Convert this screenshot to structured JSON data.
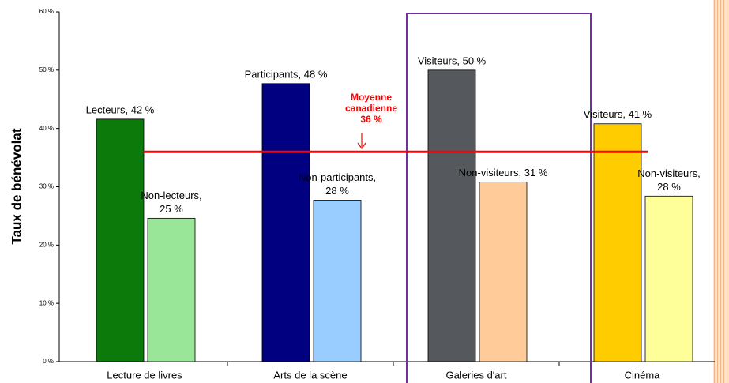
{
  "chart_data": {
    "type": "bar",
    "y_label": "Taux de bénévolat",
    "categories": [
      "Lecture de livres",
      "Arts de la scène",
      "Galeries d'art",
      "Cinéma"
    ],
    "series": [
      {
        "colors": [
          "#0b7a0b",
          "#000080",
          "#55595e",
          "#ffcc00"
        ],
        "values": [
          41.6,
          47.7,
          50,
          40.8
        ],
        "value_labels": [
          [
            "Lecteurs, 42 %"
          ],
          [
            "Participants, 48 %"
          ],
          [
            "Visiteurs, 50 %"
          ],
          [
            "Visiteurs, 41 %"
          ]
        ]
      },
      {
        "colors": [
          "#99e699",
          "#99ccff",
          "#ffcc99",
          "#ffff99"
        ],
        "values": [
          24.6,
          27.7,
          30.8,
          28.4
        ],
        "value_labels": [
          [
            "Non-lecteurs,",
            "25 %"
          ],
          [
            "Non-participants,",
            "28 %"
          ],
          [
            "Non-visiteurs, 31 %"
          ],
          [
            "Non-visiteurs,",
            "28 %"
          ]
        ]
      }
    ],
    "ylim": [
      0,
      60
    ],
    "yticks": [
      {
        "value": 0,
        "label": "0 %"
      },
      {
        "value": 10,
        "label": "10 %"
      },
      {
        "value": 20,
        "label": "20 %"
      },
      {
        "value": 30,
        "label": "30 %"
      },
      {
        "value": 40,
        "label": "40 %"
      },
      {
        "value": 50,
        "label": "50 %"
      },
      {
        "value": 60,
        "label": "60 %"
      }
    ],
    "reference_line": {
      "value": 36,
      "color": "#ff0000",
      "label": [
        "Moyenne",
        "canadienne",
        "36 %"
      ]
    }
  }
}
